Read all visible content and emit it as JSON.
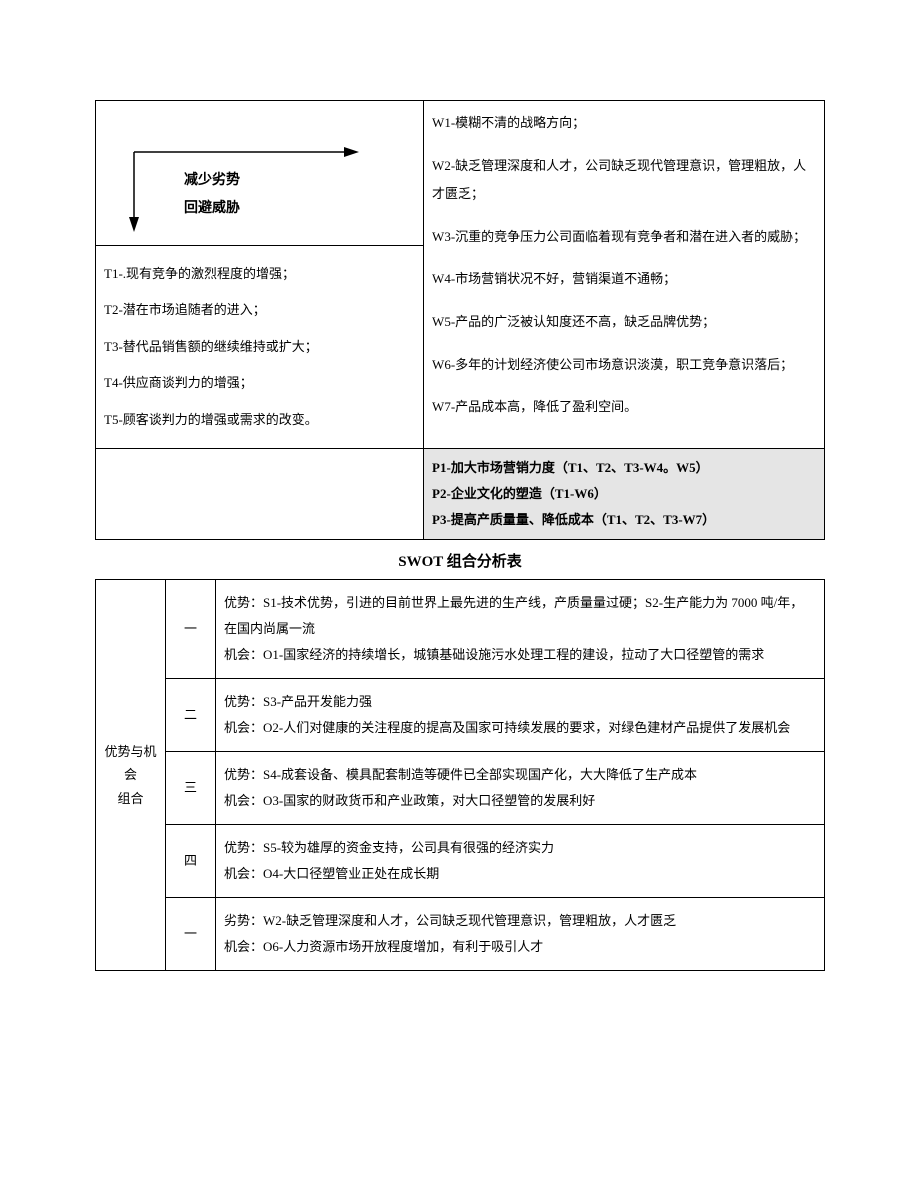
{
  "table1": {
    "arrow": {
      "label1": "减少劣势",
      "label2": "回避威胁"
    },
    "threats": [
      "T1-.现有竞争的激烈程度的增强；",
      "T2-潜在市场追随者的进入；",
      "T3-替代品销售额的继续维持或扩大；",
      "T4-供应商谈判力的增强；",
      "T5-顾客谈判力的增强或需求的改变。"
    ],
    "weaknesses": [
      "W1-模糊不清的战略方向；",
      "W2-缺乏管理深度和人才，公司缺乏现代管理意识，管理粗放，人才匮乏；",
      "W3-沉重的竞争压力公司面临着现有竞争者和潜在进入者的威胁；",
      "W4-市场营销状况不好，营销渠道不通畅；",
      "W5-产品的广泛被认知度还不高，缺乏品牌优势；",
      "W6-多年的计划经济使公司市场意识淡漠，职工竞争意识落后；",
      "W7-产品成本高，降低了盈利空间。"
    ],
    "strategies": [
      "P1-加大市场营销力度（T1、T2、T3-W4。W5）",
      "P2-企业文化的塑造（T1-W6）",
      "P3-提高产质量量、降低成本（T1、T2、T3-W7）"
    ]
  },
  "section_title": "SWOT 组合分析表",
  "table2": {
    "group1_label": "优势与机会\n组合",
    "rows": [
      {
        "num": "一",
        "content": "优势：S1-技术优势，引进的目前世界上最先进的生产线，产质量量过硬；S2-生产能力为 7000 吨/年，在国内尚属一流\n机会：O1-国家经济的持续增长，城镇基础设施污水处理工程的建设，拉动了大口径塑管的需求"
      },
      {
        "num": "二",
        "content": "优势：S3-产品开发能力强\n机会：O2-人们对健康的关注程度的提高及国家可持续发展的要求，对绿色建材产品提供了发展机会"
      },
      {
        "num": "三",
        "content": "优势：S4-成套设备、模具配套制造等硬件已全部实现国产化，大大降低了生产成本\n机会：O3-国家的财政货币和产业政策，对大口径塑管的发展利好"
      },
      {
        "num": "四",
        "content": "优势：S5-较为雄厚的资金支持，公司具有很强的经济实力\n机会：O4-大口径塑管业正处在成长期"
      },
      {
        "num": "一",
        "content": "劣势：W2-缺乏管理深度和人才，公司缺乏现代管理意识，管理粗放，人才匮乏\n机会：O6-人力资源市场开放程度增加，有利于吸引人才"
      }
    ]
  },
  "colors": {
    "background": "#ffffff",
    "text": "#000000",
    "border": "#000000",
    "highlight_bg": "#e5e5e5"
  }
}
